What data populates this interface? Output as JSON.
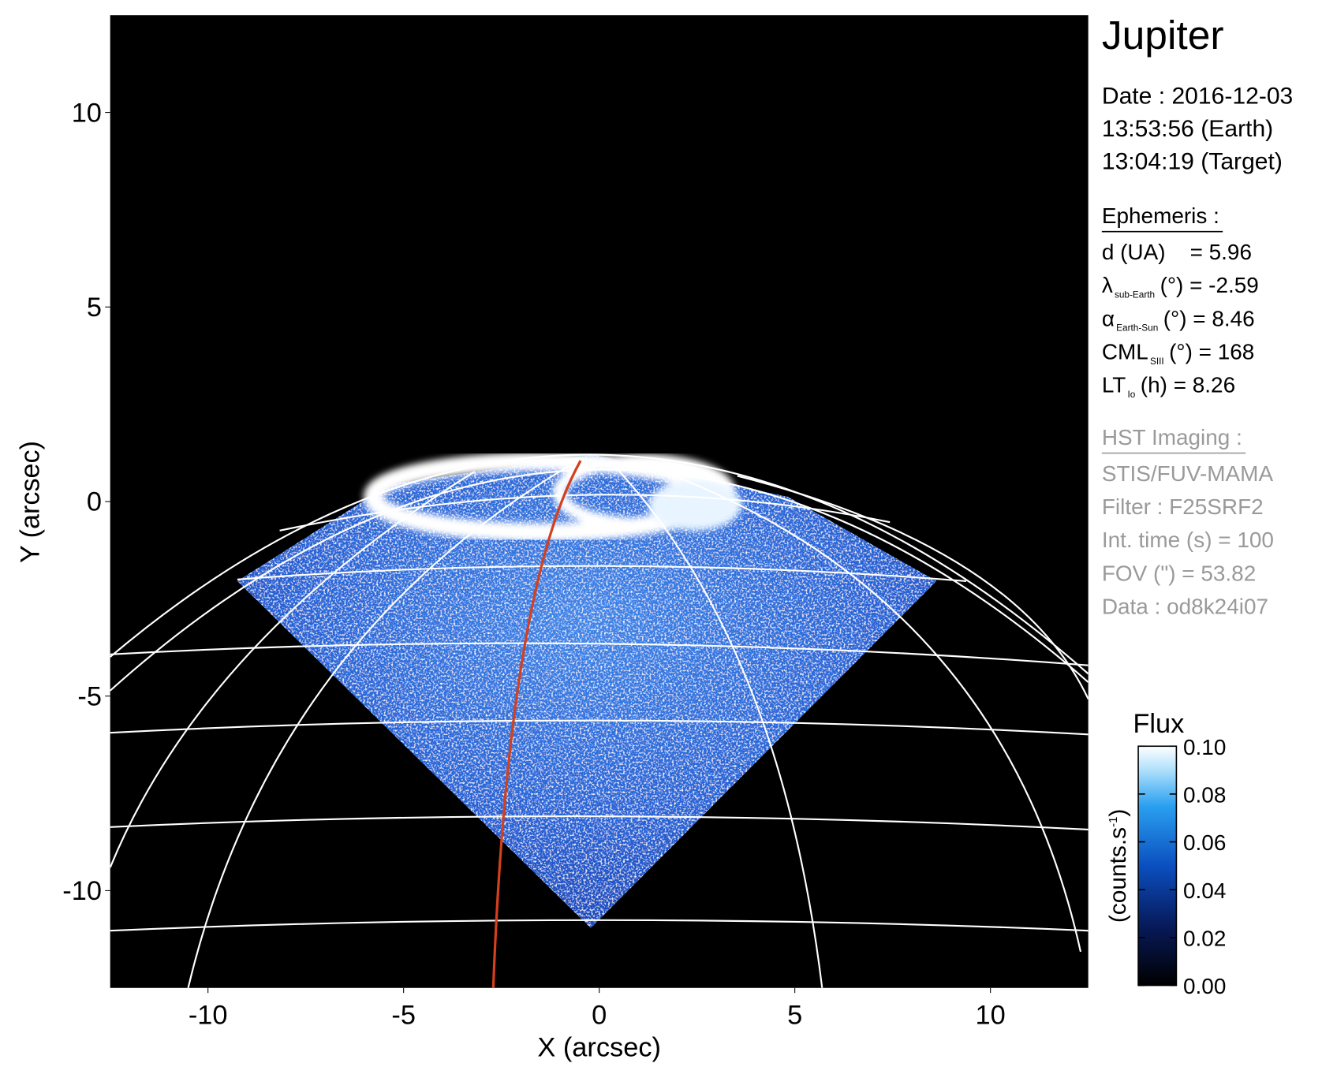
{
  "chart_data": {
    "type": "image",
    "title": "Jupiter",
    "xlabel": "X (arcsec)",
    "ylabel": "Y (arcsec)",
    "xlim": [
      -12.5,
      12.5
    ],
    "ylim": [
      -12.5,
      12.5
    ],
    "xticks": [
      -10,
      -5,
      0,
      5,
      10
    ],
    "yticks": [
      -10,
      -5,
      0,
      5,
      10
    ],
    "info": {
      "date": [
        "Date : 2016-12-03",
        "13:53:56 (Earth)",
        "13:04:19 (Target)"
      ],
      "ephemeris": {
        "heading": "Ephemeris :",
        "lines": [
          {
            "text": "d (UA)    = 5.96"
          },
          {
            "symbol": "λ",
            "sub": "sub-Earth",
            "text": "(°) = -2.59"
          },
          {
            "symbol": "α",
            "sub": "Earth-Sun",
            "text": "(°) = 8.46"
          },
          {
            "symbol": "CML",
            "sub": "SIII",
            "text": "(°) = 168"
          },
          {
            "symbol": "LT",
            "sub": "Io",
            "text": "(h) = 8.26"
          }
        ]
      },
      "hst": {
        "heading": "HST Imaging :",
        "lines": [
          {
            "text": "STIS/FUV-MAMA"
          },
          {
            "text": "Filter : F25SRF2"
          },
          {
            "text": "Int. time (s) = 100"
          },
          {
            "text": "FOV (\") = 53.82"
          },
          {
            "text": "Data : od8k24i07"
          }
        ]
      }
    },
    "colorbar": {
      "title": "Flux",
      "label": "(counts.s",
      "label_sup": "-1",
      "label_end": ")",
      "lim": [
        0,
        0.1
      ],
      "ticks": [
        {
          "value": 0,
          "label": "0.00"
        },
        {
          "value": 0.02,
          "label": "0.02"
        },
        {
          "value": 0.04,
          "label": "0.04"
        },
        {
          "value": 0.06,
          "label": "0.06"
        },
        {
          "value": 0.08,
          "label": "0.08"
        },
        {
          "value": 0.1,
          "label": "0.10"
        }
      ]
    }
  }
}
